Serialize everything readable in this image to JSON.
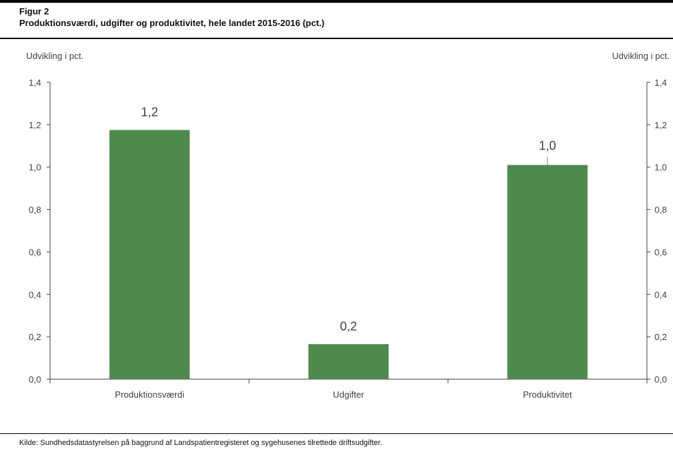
{
  "figure": {
    "label": "Figur 2",
    "title": "Produktionsværdi, udgifter og produktivitet, hele landet 2015-2016 (pct.)"
  },
  "chart_data": {
    "type": "bar",
    "title": "Produktionsværdi, udgifter og produktivitet, hele landet 2015-2016 (pct.)",
    "categories": [
      "Produktionsværdi",
      "Udgifter",
      "Produktivitet"
    ],
    "values": [
      1.175,
      0.165,
      1.01
    ],
    "data_labels": [
      "1,2",
      "0,2",
      "1,0"
    ],
    "ylabel_left": "Udvikling i pct.",
    "ylabel_right": "Udvikling i pct.",
    "ylim": [
      0,
      1.4
    ],
    "yticks": [
      "0,0",
      "0,2",
      "0,4",
      "0,6",
      "0,8",
      "1,0",
      "1,2",
      "1,4"
    ],
    "grid": false,
    "legend": "none",
    "bar_color": "#4e8a4b",
    "axis_color": "#404040"
  },
  "source": "Kilde: Sundhedsdatastyrelsen på baggrund af Landspatientregisteret og sygehusenes tilrettede driftsudgifter."
}
